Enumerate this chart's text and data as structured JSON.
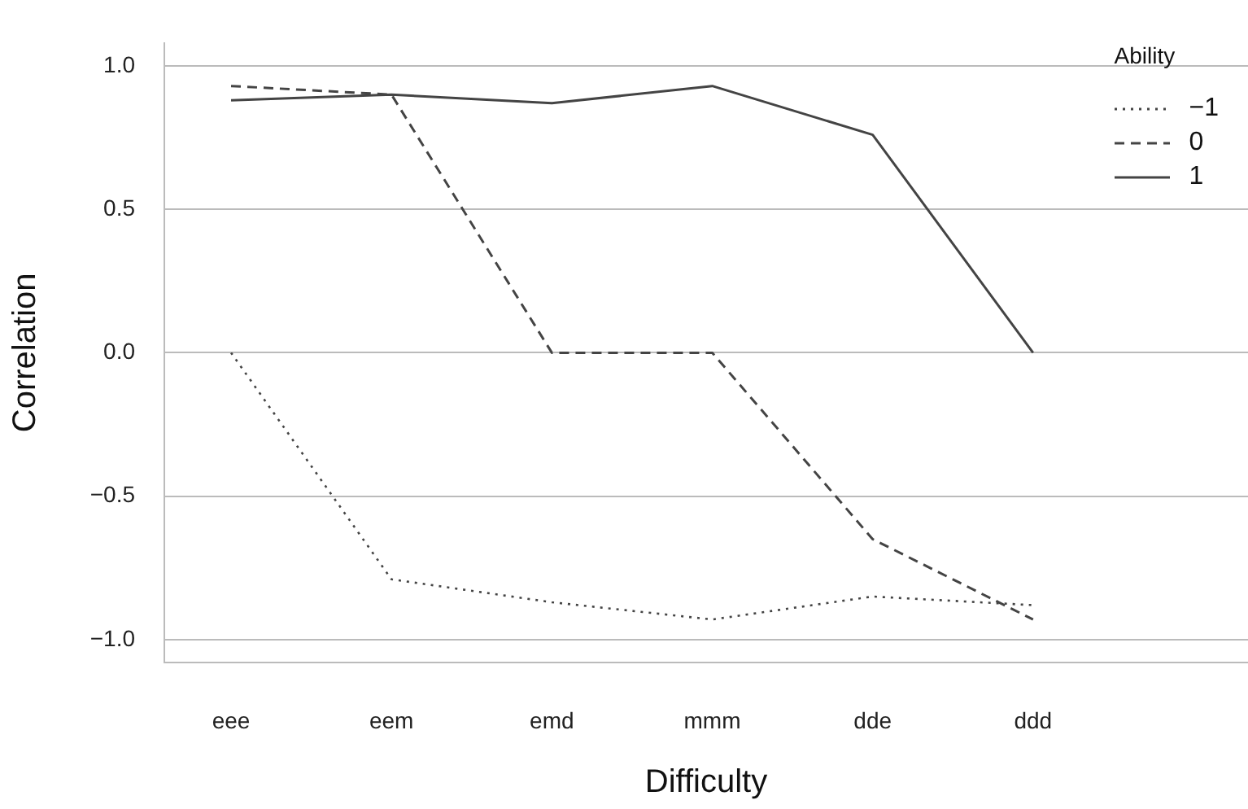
{
  "chart_data": {
    "type": "line",
    "xlabel": "Difficulty",
    "ylabel": "Correlation",
    "legend_title": "Ability",
    "categories": [
      "eee",
      "eem",
      "emd",
      "mmm",
      "dde",
      "ddd"
    ],
    "series": [
      {
        "name": "−1",
        "color": "#444444",
        "line_style": "dotted",
        "values": [
          0,
          -0.79,
          -0.87,
          -0.93,
          -0.85,
          -0.88
        ]
      },
      {
        "name": "0",
        "color": "#444444",
        "line_style": "dashed",
        "values": [
          0.93,
          0.9,
          0,
          0,
          -0.65,
          -0.93
        ]
      },
      {
        "name": "1",
        "color": "#444444",
        "line_style": "solid",
        "values": [
          0.88,
          0.9,
          0.87,
          0.93,
          0.76,
          0
        ]
      }
    ],
    "ylim": [
      -1.08,
      1.08
    ],
    "yticks": [
      {
        "value": -1,
        "label": "−1.0"
      },
      {
        "value": -0.5,
        "label": "−0.5"
      },
      {
        "value": 0,
        "label": "0.0"
      },
      {
        "value": 0.5,
        "label": "0.5"
      },
      {
        "value": 1,
        "label": "1.0"
      }
    ],
    "grid": "y",
    "legend": "top right",
    "marker": "none"
  }
}
